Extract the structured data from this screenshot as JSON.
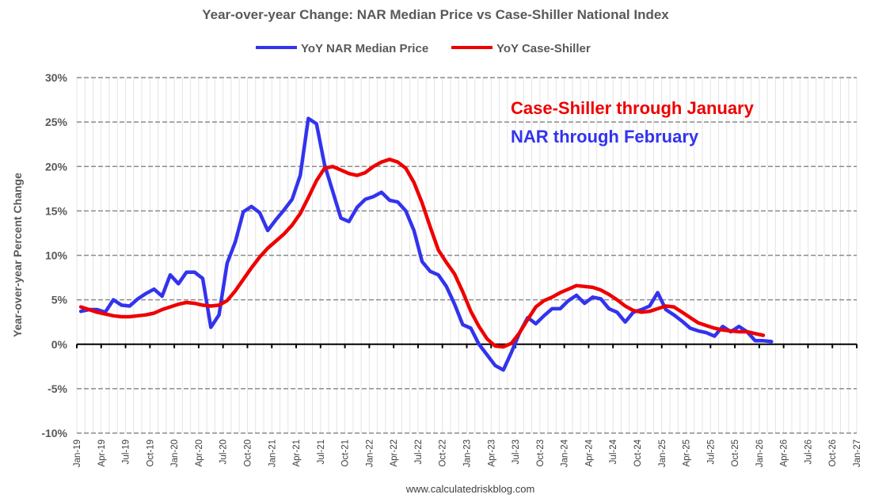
{
  "chart_data": {
    "type": "line",
    "title": "Year-over-year Change: NAR Median Price vs Case-Shiller National Index",
    "xlabel": "",
    "ylabel": "Year-over-year Percent Change",
    "ylim": [
      -10,
      30
    ],
    "yticks": [
      "-10%",
      "-5%",
      "0%",
      "5%",
      "10%",
      "15%",
      "20%",
      "25%",
      "30%"
    ],
    "ytick_values": [
      -10,
      -5,
      0,
      5,
      10,
      15,
      20,
      25,
      30
    ],
    "x_start": "Jan-19",
    "months_total": 96,
    "xticks": [
      "Jan-19",
      "Apr-19",
      "Jul-19",
      "Oct-19",
      "Jan-20",
      "Apr-20",
      "Jul-20",
      "Oct-20",
      "Jan-21",
      "Apr-21",
      "Jul-21",
      "Oct-21",
      "Jan-22",
      "Apr-22",
      "Jul-22",
      "Oct-22",
      "Jan-23",
      "Apr-23",
      "Jul-23",
      "Oct-23",
      "Jan-24",
      "Apr-24",
      "Jul-24",
      "Oct-24",
      "Jan-25",
      "Apr-25",
      "Jul-25",
      "Oct-25",
      "Jan-26",
      "Apr-26",
      "Jul-26",
      "Oct-26",
      "Jan-27"
    ],
    "grid": true,
    "legend_position": "top-center",
    "series": [
      {
        "name": "YoY NAR Median Price",
        "color": "#3333ee",
        "values": [
          3.7,
          3.9,
          3.9,
          3.6,
          5.0,
          4.4,
          4.3,
          5.1,
          5.7,
          6.2,
          5.4,
          7.8,
          6.8,
          8.1,
          8.1,
          7.4,
          1.9,
          3.3,
          9.1,
          11.5,
          14.9,
          15.5,
          14.8,
          12.8,
          14.0,
          15.1,
          16.3,
          19.0,
          25.4,
          24.8,
          20.2,
          17.2,
          14.2,
          13.8,
          15.4,
          16.3,
          16.6,
          17.1,
          16.2,
          16.0,
          15.0,
          12.8,
          9.3,
          8.2,
          7.8,
          6.5,
          4.5,
          2.2,
          1.8,
          0.0,
          -1.2,
          -2.4,
          -2.9,
          -0.9,
          1.3,
          3.0,
          2.3,
          3.2,
          4.0,
          4.0,
          4.9,
          5.5,
          4.6,
          5.3,
          5.1,
          4.0,
          3.6,
          2.5,
          3.6,
          3.9,
          4.3,
          5.8,
          3.9,
          3.3,
          2.6,
          1.8,
          1.5,
          1.3,
          0.9,
          2.0,
          1.4,
          2.0,
          1.4,
          0.4,
          0.4,
          0.3
        ]
      },
      {
        "name": "YoY Case-Shiller",
        "color": "#ee0000",
        "values": [
          4.2,
          3.9,
          3.6,
          3.4,
          3.2,
          3.1,
          3.1,
          3.2,
          3.3,
          3.5,
          3.9,
          4.2,
          4.5,
          4.7,
          4.6,
          4.4,
          4.3,
          4.4,
          4.9,
          6.0,
          7.3,
          8.6,
          9.8,
          10.8,
          11.6,
          12.4,
          13.4,
          14.7,
          16.5,
          18.4,
          19.8,
          20.0,
          19.6,
          19.2,
          19.0,
          19.3,
          20.0,
          20.5,
          20.8,
          20.5,
          19.8,
          18.2,
          15.9,
          13.2,
          10.6,
          9.2,
          7.9,
          5.9,
          3.7,
          2.0,
          0.6,
          -0.2,
          -0.3,
          0.1,
          1.3,
          2.8,
          4.2,
          4.9,
          5.3,
          5.8,
          6.2,
          6.6,
          6.5,
          6.4,
          6.1,
          5.6,
          5.0,
          4.3,
          3.8,
          3.6,
          3.7,
          4.0,
          4.3,
          4.2,
          3.6,
          3.0,
          2.4,
          2.1,
          1.8,
          1.6,
          1.5,
          1.4,
          1.4,
          1.2,
          1.0
        ]
      }
    ],
    "annotations": [
      {
        "text": "Case-Shiller through January",
        "color": "#ee0000"
      },
      {
        "text": "NAR through February",
        "color": "#3333ee"
      }
    ],
    "source": "www.calculatedriskblog.com"
  }
}
